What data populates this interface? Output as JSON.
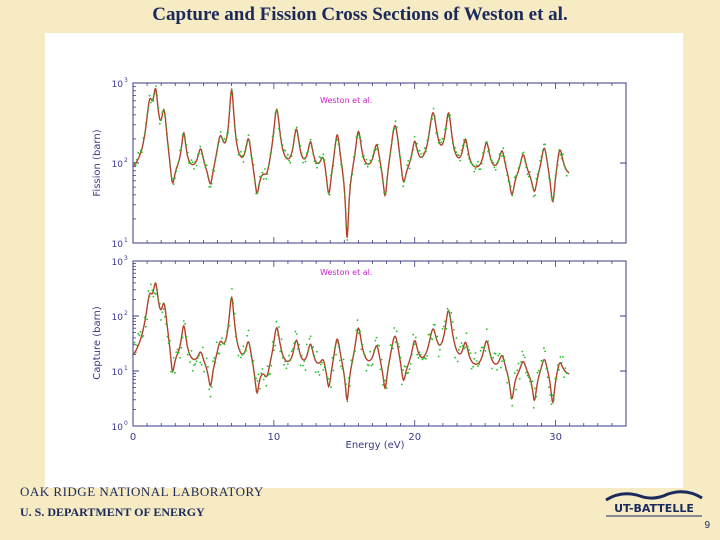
{
  "slide": {
    "title": "Capture and Fission Cross Sections of Weston et al.",
    "footer_org": "OAK RIDGE NATIONAL LABORATORY",
    "footer_dept": "U. S. DEPARTMENT OF ENERGY",
    "logo_text": "UT-BATTELLE",
    "page_number": "9"
  },
  "colors": {
    "calc_line": "#b0422b",
    "data_points": "#22c222",
    "legend_text": "#cc22cc",
    "axes": "#3a3a8a"
  },
  "chart_data": [
    {
      "type": "line",
      "name": "fission",
      "ylabel": "Fission (barn)",
      "yscale": "log",
      "ylim": [
        10,
        1000
      ],
      "xlim": [
        0,
        35
      ],
      "yticks": [
        {
          "v": 10,
          "label": "10"
        },
        {
          "v": 100,
          "label": "10"
        },
        {
          "v": 1000,
          "label": "10"
        }
      ],
      "ytick_exp": [
        "1",
        "2",
        "3"
      ],
      "legend": "Weston et al.",
      "peaks": [
        [
          1.2,
          500,
          0.22
        ],
        [
          1.6,
          700,
          0.17
        ],
        [
          2.2,
          400,
          0.18
        ],
        [
          3.6,
          200,
          0.16
        ],
        [
          4.8,
          110,
          0.22
        ],
        [
          6.2,
          170,
          0.25
        ],
        [
          7.0,
          800,
          0.14
        ],
        [
          8.2,
          170,
          0.2
        ],
        [
          10.2,
          450,
          0.2
        ],
        [
          11.6,
          220,
          0.2
        ],
        [
          12.6,
          140,
          0.2
        ],
        [
          13.5,
          90,
          0.22
        ],
        [
          14.5,
          230,
          0.2
        ],
        [
          16.0,
          230,
          0.2
        ],
        [
          17.3,
          140,
          0.22
        ],
        [
          18.6,
          300,
          0.25
        ],
        [
          20.0,
          140,
          0.2
        ],
        [
          21.3,
          380,
          0.25
        ],
        [
          22.4,
          370,
          0.2
        ],
        [
          23.6,
          150,
          0.2
        ],
        [
          25.1,
          140,
          0.22
        ],
        [
          26.2,
          110,
          0.22
        ],
        [
          27.7,
          100,
          0.22
        ],
        [
          29.2,
          140,
          0.22
        ],
        [
          30.3,
          130,
          0.22
        ]
      ],
      "dips": [
        [
          2.8,
          0.45
        ],
        [
          5.5,
          0.55
        ],
        [
          8.8,
          0.45
        ],
        [
          9.5,
          0.75
        ],
        [
          13.9,
          0.4
        ],
        [
          15.2,
          0.12
        ],
        [
          17.9,
          0.35
        ],
        [
          19.2,
          0.5
        ],
        [
          26.9,
          0.5
        ],
        [
          28.5,
          0.55
        ],
        [
          29.8,
          0.35
        ]
      ],
      "baseline": 65
    },
    {
      "type": "line",
      "name": "capture",
      "ylabel": "Capture (barn)",
      "xlabel": "Energy  (eV)",
      "yscale": "log",
      "ylim": [
        1,
        1000
      ],
      "xlim": [
        0,
        35
      ],
      "xticks": [
        0,
        10,
        20,
        30
      ],
      "yticks": [
        {
          "v": 1,
          "label": "10"
        },
        {
          "v": 10,
          "label": "10"
        },
        {
          "v": 100,
          "label": "10"
        },
        {
          "v": 1000,
          "label": "10"
        }
      ],
      "ytick_exp": [
        "0",
        "1",
        "2",
        "3"
      ],
      "legend": "Weston et al.",
      "peaks": [
        [
          1.2,
          200,
          0.22
        ],
        [
          1.6,
          350,
          0.17
        ],
        [
          2.2,
          150,
          0.18
        ],
        [
          3.6,
          60,
          0.16
        ],
        [
          4.8,
          15,
          0.22
        ],
        [
          6.2,
          25,
          0.25
        ],
        [
          7.0,
          220,
          0.14
        ],
        [
          8.2,
          30,
          0.2
        ],
        [
          10.2,
          60,
          0.2
        ],
        [
          11.6,
          30,
          0.2
        ],
        [
          12.6,
          25,
          0.2
        ],
        [
          13.5,
          12,
          0.22
        ],
        [
          14.5,
          40,
          0.2
        ],
        [
          16.0,
          60,
          0.2
        ],
        [
          17.3,
          25,
          0.22
        ],
        [
          18.6,
          45,
          0.25
        ],
        [
          20.0,
          30,
          0.2
        ],
        [
          21.3,
          50,
          0.25
        ],
        [
          22.4,
          120,
          0.2
        ],
        [
          23.6,
          25,
          0.2
        ],
        [
          25.1,
          30,
          0.22
        ],
        [
          26.2,
          15,
          0.22
        ],
        [
          27.7,
          12,
          0.22
        ],
        [
          29.2,
          15,
          0.22
        ],
        [
          30.3,
          12,
          0.22
        ]
      ],
      "dips": [
        [
          2.8,
          0.3
        ],
        [
          5.5,
          0.35
        ],
        [
          8.8,
          0.3
        ],
        [
          9.5,
          0.6
        ],
        [
          13.9,
          0.35
        ],
        [
          15.2,
          0.2
        ],
        [
          17.9,
          0.3
        ],
        [
          19.2,
          0.4
        ],
        [
          26.9,
          0.3
        ],
        [
          28.5,
          0.3
        ],
        [
          29.8,
          0.25
        ]
      ],
      "baseline": 8
    }
  ]
}
